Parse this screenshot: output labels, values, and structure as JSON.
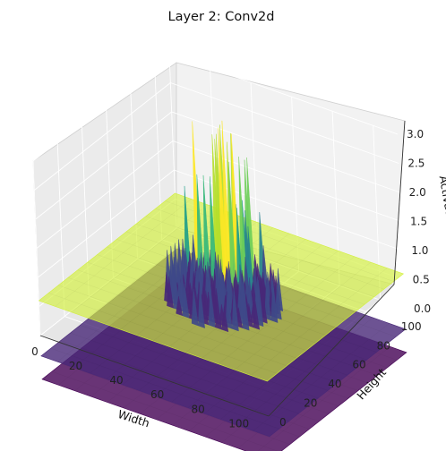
{
  "chart_data": {
    "type": "surface3d",
    "title": "Layer 2: Conv2d",
    "xlabel": "Width",
    "ylabel": "Height",
    "zlabel": "Activation",
    "x_ticks": [
      "0",
      "20",
      "40",
      "60",
      "80",
      "100"
    ],
    "y_ticks": [
      "0",
      "20",
      "40",
      "60",
      "80",
      "100"
    ],
    "z_ticks": [
      "0.0",
      "0.5",
      "1.0",
      "1.5",
      "2.0",
      "2.5",
      "3.0"
    ],
    "xlim": [
      0,
      112
    ],
    "ylim": [
      0,
      112
    ],
    "zlim": [
      0,
      3
    ],
    "grid": true,
    "colormap": "viridis",
    "planes": [
      {
        "name": "bottom plane",
        "z": -0.75,
        "color": "#440154",
        "opacity": 0.8
      },
      {
        "name": "middle plane",
        "z": -0.35,
        "color": "#482878",
        "opacity": 0.8
      },
      {
        "name": "upper plane",
        "z": 0.6,
        "color": "#d2f03a",
        "opacity": 0.65
      }
    ],
    "surface": {
      "description": "activation map peaks in the center region",
      "x_range": [
        25,
        75
      ],
      "y_range": [
        45,
        90
      ],
      "z_range": [
        0.0,
        3.0
      ]
    }
  }
}
